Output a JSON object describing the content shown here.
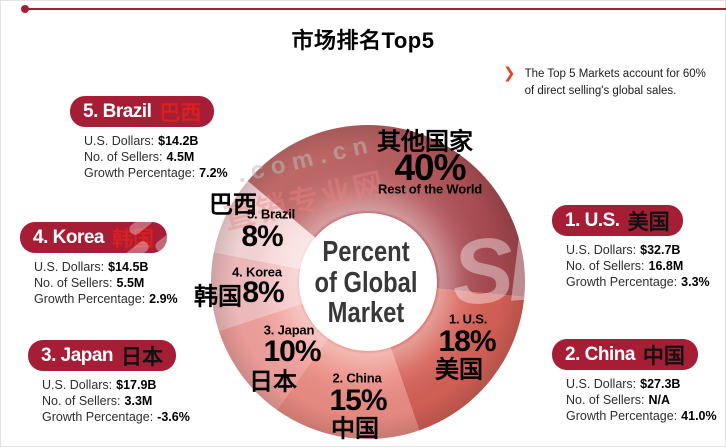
{
  "page": {
    "title": "市场排名Top5"
  },
  "note": {
    "bullet": "❯",
    "line1": "The Top 5 Markets account for 60%",
    "line2": "of direct selling's global sales."
  },
  "center_label": {
    "line1": "Percent",
    "line2": "of Global",
    "line3": "Market"
  },
  "colors": {
    "accent": "#a51e35",
    "note_bullet": "#e8432b"
  },
  "cards": [
    {
      "title": "5. Brazil",
      "zh": "巴西",
      "zh_color": "#d91f1f",
      "rows": [
        [
          "U.S. Dollars:",
          "$14.2B"
        ],
        [
          "No. of Sellers:",
          "4.5M"
        ],
        [
          "Growth Percentage:",
          "7.2%"
        ]
      ]
    },
    {
      "title": "4. Korea",
      "zh": "韩国",
      "zh_color": "#d91f1f",
      "rows": [
        [
          "U.S. Dollars:",
          "$14.5B"
        ],
        [
          "No. of Sellers:",
          "5.5M"
        ],
        [
          "Growth Percentage:",
          "2.9%"
        ]
      ]
    },
    {
      "title": "3. Japan",
      "zh": "日本",
      "zh_color": "#111111",
      "rows": [
        [
          "U.S. Dollars:",
          "$17.9B"
        ],
        [
          "No. of Sellers:",
          "3.3M"
        ],
        [
          "Growth Percentage:",
          "-3.6%"
        ]
      ]
    },
    {
      "title": "1. U.S.",
      "zh": "美国",
      "zh_color": "#111111",
      "rows": [
        [
          "U.S. Dollars:",
          "$32.7B"
        ],
        [
          "No. of Sellers:",
          "16.8M"
        ],
        [
          "Growth Percentage:",
          "3.3%"
        ]
      ]
    },
    {
      "title": "2. China",
      "zh": "中国",
      "zh_color": "#111111",
      "rows": [
        [
          "U.S. Dollars:",
          "$27.3B"
        ],
        [
          "No. of Sellers:",
          "N/A"
        ],
        [
          "Growth Percentage:",
          "41.0%"
        ]
      ]
    }
  ],
  "chart_data": {
    "type": "pie",
    "donut": true,
    "title": "Percent of Global Market",
    "annotation": "The Top 5 Markets account for 60% of direct selling's global sales.",
    "start_angle_deg": 310,
    "segments": [
      {
        "label": "Rest of the World",
        "zh": "其他国家",
        "value_pct": 40,
        "pct_label": "40%",
        "color": "#bd5a60",
        "gradient": [
          "#cd7672",
          "#a74850"
        ]
      },
      {
        "label": "1. U.S.",
        "zh": "美国",
        "value_pct": 18,
        "pct_label": "18%",
        "color": "#d66157"
      },
      {
        "label": "2. China",
        "zh": "中国",
        "value_pct": 15,
        "pct_label": "15%",
        "color": "#ec8d84"
      },
      {
        "label": "3. Japan",
        "zh": "日本",
        "value_pct": 10,
        "pct_label": "10%",
        "color": "#f2a19d"
      },
      {
        "label": "4. Korea",
        "zh": "韩国",
        "value_pct": 8,
        "pct_label": "8%",
        "color": "#f4bec0"
      },
      {
        "label": "5. Brazil",
        "zh": "巴西",
        "value_pct": 8,
        "pct_label": "8%",
        "color": "#f8d8d9"
      }
    ]
  },
  "watermarks": {
    "wm1": ".com.cn",
    "wm2": "直销专业网",
    "wm3": "SP"
  }
}
